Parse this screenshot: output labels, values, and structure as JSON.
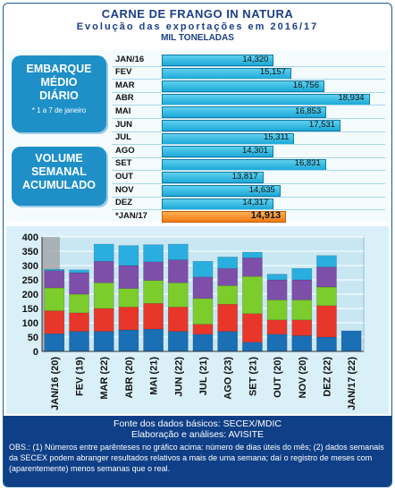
{
  "header": {
    "title": "CARNE DE FRANGO IN NATURA",
    "subtitle": "Evolução das exportações em 2016/17",
    "unit": "MIL TONELADAS"
  },
  "callouts": {
    "daily": {
      "lines": [
        "EMBARQUE",
        "MÉDIO",
        "DIÁRIO"
      ],
      "note": "* 1 a 7 de janeiro"
    },
    "weekly": {
      "lines": [
        "VOLUME",
        "SEMANAL",
        "ACUMULADO"
      ]
    }
  },
  "colors": {
    "bar": "#1ca9d8",
    "highlight": "#f07a14",
    "panel": "#daf0f8",
    "footer": "#0f3f86"
  },
  "chart_data": [
    {
      "type": "bar",
      "orientation": "horizontal",
      "categories": [
        "JAN/16",
        "FEV",
        "MAR",
        "ABR",
        "MAI",
        "JUN",
        "JUL",
        "AGO",
        "SET",
        "OUT",
        "NOV",
        "DEZ",
        "*JAN/17"
      ],
      "values": [
        14320,
        15157,
        16756,
        18934,
        16853,
        17531,
        15311,
        14301,
        16831,
        13817,
        14635,
        14317,
        14913
      ],
      "value_labels": [
        "14,320",
        "15,157",
        "16,756",
        "18,934",
        "16,853",
        "17,531",
        "15,311",
        "14,301",
        "16,831",
        "13,817",
        "14,635",
        "14,317",
        "14,913"
      ],
      "highlight_index": 12
    },
    {
      "type": "bar",
      "stacked": true,
      "categories": [
        "JAN/16 (20)",
        "FEV (19)",
        "MAR (22)",
        "ABR (20)",
        "MAI (21)",
        "JUN (22)",
        "JUL (21)",
        "AGO (23)",
        "SET (21)",
        "OUT (20)",
        "NOV (20)",
        "DEZ (22)",
        "JAN/17 (22)"
      ],
      "segment_colors": [
        "#1a6fb5",
        "#e8372a",
        "#7ccc2c",
        "#7d4fa8",
        "#2aaee0"
      ],
      "series": [
        {
          "values": [
            62,
            70,
            70,
            75,
            78,
            70,
            60,
            70,
            32,
            60,
            55,
            50,
            72
          ]
        },
        {
          "values": [
            80,
            65,
            80,
            80,
            90,
            85,
            35,
            95,
            100,
            50,
            55,
            110,
            0
          ]
        },
        {
          "values": [
            80,
            65,
            90,
            65,
            80,
            85,
            90,
            65,
            130,
            70,
            70,
            65,
            0
          ]
        },
        {
          "values": [
            60,
            75,
            75,
            80,
            65,
            80,
            75,
            60,
            65,
            70,
            70,
            70,
            0
          ]
        },
        {
          "values": [
            5,
            10,
            60,
            70,
            60,
            55,
            55,
            40,
            20,
            20,
            40,
            40,
            0
          ]
        }
      ],
      "ylim": [
        0,
        400
      ],
      "yticks": [
        0,
        50,
        100,
        150,
        200,
        250,
        300,
        350,
        400
      ],
      "grid": true
    }
  ],
  "footer": {
    "line1": "Fonte dos dados básicos: SECEX/MDIC",
    "line2": "Elaboração e análises: AVISITE",
    "obs": "OBS.: (1) Números entre parênteses no gráfico acima: número de dias úteis do mês; (2) dados semanais da SECEX podem abranger resultados relativos a mais de uma semana; daí o registro de meses com (aparentemente) menos semanas que o real."
  }
}
